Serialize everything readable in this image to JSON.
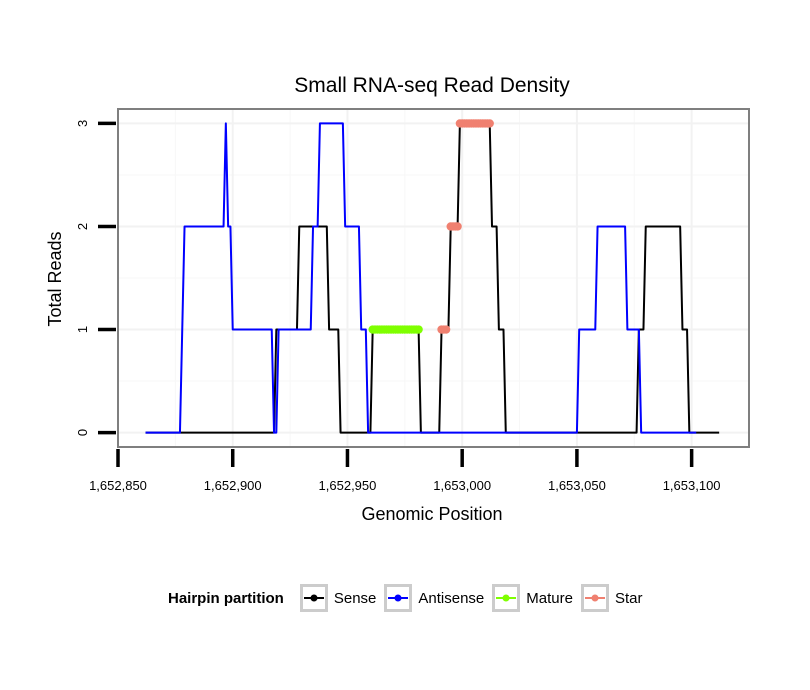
{
  "chart_data": {
    "type": "line",
    "title": "Small RNA-seq Read Density",
    "xlabel": "Genomic Position",
    "ylabel": "Total Reads",
    "xlim": [
      1652850,
      1653125
    ],
    "ylim": [
      -0.14,
      3.14
    ],
    "x_ticks": [
      1652850,
      1652900,
      1652950,
      1653000,
      1653050,
      1653100
    ],
    "x_tick_labels": [
      "1,652,850",
      "1,652,900",
      "1,652,950",
      "1,653,000",
      "1,653,050",
      "1,653,100"
    ],
    "y_ticks": [
      0,
      1,
      2,
      3
    ],
    "y_tick_labels": [
      "0",
      "1",
      "2",
      "3"
    ],
    "grid": true,
    "legend_position": "bottom",
    "legend_title": "Hairpin partition",
    "series": [
      {
        "name": "Sense",
        "color": "#000000",
        "points": [
          [
            1652862,
            0
          ],
          [
            1652918,
            0
          ],
          [
            1652919,
            1
          ],
          [
            1652928,
            1
          ],
          [
            1652929,
            2
          ],
          [
            1652941,
            2
          ],
          [
            1652942,
            1
          ],
          [
            1652946,
            1
          ],
          [
            1652947,
            0
          ],
          [
            1652960,
            0
          ],
          [
            1652961,
            1
          ],
          [
            1652981,
            1
          ],
          [
            1652982,
            0
          ],
          [
            1652990,
            0
          ],
          [
            1652991,
            1
          ],
          [
            1652994,
            1
          ],
          [
            1652995,
            2
          ],
          [
            1652998,
            2
          ],
          [
            1652999,
            3
          ],
          [
            1653012,
            3
          ],
          [
            1653013,
            2
          ],
          [
            1653015,
            2
          ],
          [
            1653016,
            1
          ],
          [
            1653018,
            1
          ],
          [
            1653019,
            0
          ],
          [
            1653076,
            0
          ],
          [
            1653077,
            1
          ],
          [
            1653079,
            1
          ],
          [
            1653080,
            2
          ],
          [
            1653095,
            2
          ],
          [
            1653096,
            1
          ],
          [
            1653098,
            1
          ],
          [
            1653099,
            0
          ],
          [
            1653112,
            0
          ]
        ]
      },
      {
        "name": "Antisense",
        "color": "#0000ff",
        "points": [
          [
            1652862,
            0
          ],
          [
            1652877,
            0
          ],
          [
            1652879,
            2
          ],
          [
            1652896,
            2
          ],
          [
            1652897,
            3
          ],
          [
            1652898,
            2
          ],
          [
            1652899,
            2
          ],
          [
            1652900,
            1
          ],
          [
            1652917,
            1
          ],
          [
            1652918,
            0
          ],
          [
            1652919,
            0
          ],
          [
            1652920,
            1
          ],
          [
            1652934,
            1
          ],
          [
            1652935,
            2
          ],
          [
            1652937,
            2
          ],
          [
            1652938,
            3
          ],
          [
            1652948,
            3
          ],
          [
            1652949,
            2
          ],
          [
            1652955,
            2
          ],
          [
            1652956,
            1
          ],
          [
            1652958,
            1
          ],
          [
            1652959,
            0
          ],
          [
            1653050,
            0
          ],
          [
            1653051,
            1
          ],
          [
            1653058,
            1
          ],
          [
            1653059,
            2
          ],
          [
            1653071,
            2
          ],
          [
            1653072,
            1
          ],
          [
            1653077,
            1
          ],
          [
            1653078,
            0
          ],
          [
            1653102,
            0
          ]
        ]
      },
      {
        "name": "Mature",
        "color": "#7fff00",
        "segments": [
          [
            1652961,
            1652981,
            1
          ]
        ]
      },
      {
        "name": "Star",
        "color": "#f08070",
        "segments": [
          [
            1652991,
            1652993,
            1
          ],
          [
            1652995,
            1652998,
            2
          ],
          [
            1652999,
            1653012,
            3
          ]
        ]
      }
    ]
  }
}
